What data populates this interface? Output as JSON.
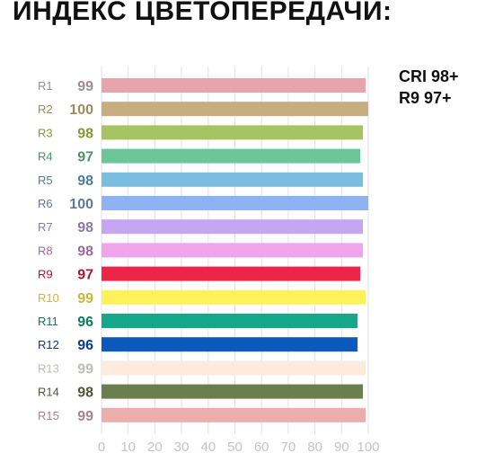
{
  "title": "ИНДЕКС ЦВЕТОПЕРЕДАЧИ:",
  "badges": {
    "cri": "CRI 98+",
    "r9": "R9 97+"
  },
  "chart_data": {
    "type": "bar",
    "orientation": "horizontal",
    "title": "ИНДЕКС ЦВЕТОПЕРЕДАЧИ:",
    "xlim": [
      0,
      100
    ],
    "xticks": [
      "0",
      "10",
      "20",
      "30",
      "40",
      "50",
      "60",
      "70",
      "80",
      "90",
      "100"
    ],
    "grid": "vertical",
    "categories": [
      "R1",
      "R2",
      "R3",
      "R4",
      "R5",
      "R6",
      "R7",
      "R8",
      "R9",
      "R10",
      "R11",
      "R12",
      "R13",
      "R14",
      "R15"
    ],
    "values": [
      99,
      100,
      98,
      97,
      98,
      100,
      98,
      98,
      97,
      99,
      96,
      96,
      99,
      98,
      99
    ],
    "value_labels": [
      "99",
      "100",
      "98",
      "97",
      "98",
      "100",
      "98",
      "98",
      "97",
      "99",
      "96",
      "96",
      "99",
      "98",
      "99"
    ],
    "bar_colors": [
      "#e6a5ad",
      "#c7ad80",
      "#a6c462",
      "#6cc698",
      "#79bede",
      "#8fb2f3",
      "#c6a5f3",
      "#eea5ec",
      "#ec2549",
      "#fdf25a",
      "#14a78a",
      "#0b59bd",
      "#feebdd",
      "#6a7f4b",
      "#ebaeab"
    ],
    "label_colors": [
      "#9b8d93",
      "#9d8b5d",
      "#7f9a36",
      "#4f8f6c",
      "#4e7f97",
      "#5a7aa4",
      "#8a78aa",
      "#9a6b98",
      "#a7172f",
      "#c7b83b",
      "#0b7a5f",
      "#0d3d83",
      "#c2bcb8",
      "#4b5a35",
      "#a8838a"
    ],
    "tick_color": "#c3c3c3"
  }
}
